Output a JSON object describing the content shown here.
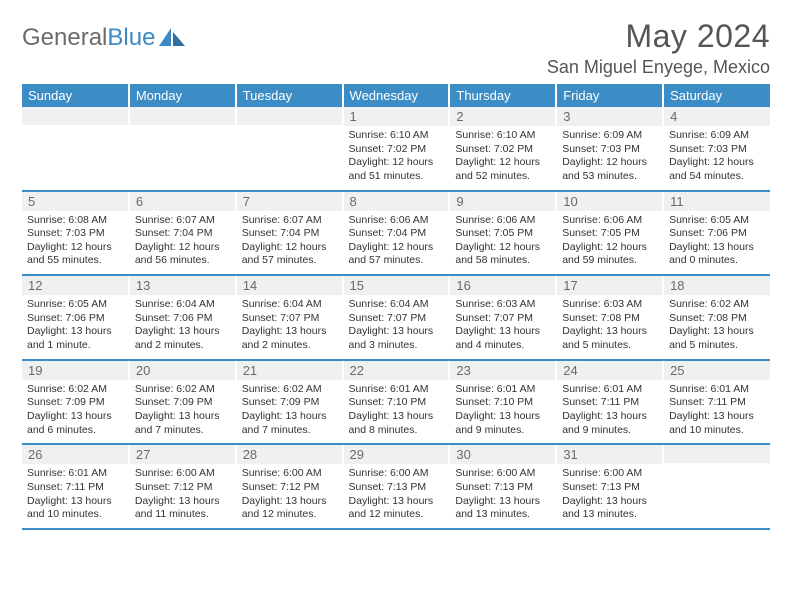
{
  "brand": {
    "word1": "General",
    "word2": "Blue"
  },
  "title": "May 2024",
  "location": "San Miguel Enyege, Mexico",
  "colors": {
    "header_bg": "#3c8dc5",
    "header_text": "#ffffff",
    "daynum_bg": "#eef0f2",
    "daynum_text": "#6a6a6a",
    "row_divider": "#3c8dc5",
    "body_text": "#333333",
    "title_text": "#555555",
    "logo_gray": "#6b6b6b",
    "logo_blue": "#3b8ac4",
    "background": "#ffffff"
  },
  "typography": {
    "month_title_pt": 24,
    "location_pt": 13.5,
    "weekday_pt": 10,
    "daynum_pt": 10,
    "body_pt": 8,
    "font_family": "Arial"
  },
  "weekdays": [
    "Sunday",
    "Monday",
    "Tuesday",
    "Wednesday",
    "Thursday",
    "Friday",
    "Saturday"
  ],
  "weeks": [
    [
      {
        "num": "",
        "lines": []
      },
      {
        "num": "",
        "lines": []
      },
      {
        "num": "",
        "lines": []
      },
      {
        "num": "1",
        "lines": [
          "Sunrise: 6:10 AM",
          "Sunset: 7:02 PM",
          "Daylight: 12 hours and 51 minutes."
        ]
      },
      {
        "num": "2",
        "lines": [
          "Sunrise: 6:10 AM",
          "Sunset: 7:02 PM",
          "Daylight: 12 hours and 52 minutes."
        ]
      },
      {
        "num": "3",
        "lines": [
          "Sunrise: 6:09 AM",
          "Sunset: 7:03 PM",
          "Daylight: 12 hours and 53 minutes."
        ]
      },
      {
        "num": "4",
        "lines": [
          "Sunrise: 6:09 AM",
          "Sunset: 7:03 PM",
          "Daylight: 12 hours and 54 minutes."
        ]
      }
    ],
    [
      {
        "num": "5",
        "lines": [
          "Sunrise: 6:08 AM",
          "Sunset: 7:03 PM",
          "Daylight: 12 hours and 55 minutes."
        ]
      },
      {
        "num": "6",
        "lines": [
          "Sunrise: 6:07 AM",
          "Sunset: 7:04 PM",
          "Daylight: 12 hours and 56 minutes."
        ]
      },
      {
        "num": "7",
        "lines": [
          "Sunrise: 6:07 AM",
          "Sunset: 7:04 PM",
          "Daylight: 12 hours and 57 minutes."
        ]
      },
      {
        "num": "8",
        "lines": [
          "Sunrise: 6:06 AM",
          "Sunset: 7:04 PM",
          "Daylight: 12 hours and 57 minutes."
        ]
      },
      {
        "num": "9",
        "lines": [
          "Sunrise: 6:06 AM",
          "Sunset: 7:05 PM",
          "Daylight: 12 hours and 58 minutes."
        ]
      },
      {
        "num": "10",
        "lines": [
          "Sunrise: 6:06 AM",
          "Sunset: 7:05 PM",
          "Daylight: 12 hours and 59 minutes."
        ]
      },
      {
        "num": "11",
        "lines": [
          "Sunrise: 6:05 AM",
          "Sunset: 7:06 PM",
          "Daylight: 13 hours and 0 minutes."
        ]
      }
    ],
    [
      {
        "num": "12",
        "lines": [
          "Sunrise: 6:05 AM",
          "Sunset: 7:06 PM",
          "Daylight: 13 hours and 1 minute."
        ]
      },
      {
        "num": "13",
        "lines": [
          "Sunrise: 6:04 AM",
          "Sunset: 7:06 PM",
          "Daylight: 13 hours and 2 minutes."
        ]
      },
      {
        "num": "14",
        "lines": [
          "Sunrise: 6:04 AM",
          "Sunset: 7:07 PM",
          "Daylight: 13 hours and 2 minutes."
        ]
      },
      {
        "num": "15",
        "lines": [
          "Sunrise: 6:04 AM",
          "Sunset: 7:07 PM",
          "Daylight: 13 hours and 3 minutes."
        ]
      },
      {
        "num": "16",
        "lines": [
          "Sunrise: 6:03 AM",
          "Sunset: 7:07 PM",
          "Daylight: 13 hours and 4 minutes."
        ]
      },
      {
        "num": "17",
        "lines": [
          "Sunrise: 6:03 AM",
          "Sunset: 7:08 PM",
          "Daylight: 13 hours and 5 minutes."
        ]
      },
      {
        "num": "18",
        "lines": [
          "Sunrise: 6:02 AM",
          "Sunset: 7:08 PM",
          "Daylight: 13 hours and 5 minutes."
        ]
      }
    ],
    [
      {
        "num": "19",
        "lines": [
          "Sunrise: 6:02 AM",
          "Sunset: 7:09 PM",
          "Daylight: 13 hours and 6 minutes."
        ]
      },
      {
        "num": "20",
        "lines": [
          "Sunrise: 6:02 AM",
          "Sunset: 7:09 PM",
          "Daylight: 13 hours and 7 minutes."
        ]
      },
      {
        "num": "21",
        "lines": [
          "Sunrise: 6:02 AM",
          "Sunset: 7:09 PM",
          "Daylight: 13 hours and 7 minutes."
        ]
      },
      {
        "num": "22",
        "lines": [
          "Sunrise: 6:01 AM",
          "Sunset: 7:10 PM",
          "Daylight: 13 hours and 8 minutes."
        ]
      },
      {
        "num": "23",
        "lines": [
          "Sunrise: 6:01 AM",
          "Sunset: 7:10 PM",
          "Daylight: 13 hours and 9 minutes."
        ]
      },
      {
        "num": "24",
        "lines": [
          "Sunrise: 6:01 AM",
          "Sunset: 7:11 PM",
          "Daylight: 13 hours and 9 minutes."
        ]
      },
      {
        "num": "25",
        "lines": [
          "Sunrise: 6:01 AM",
          "Sunset: 7:11 PM",
          "Daylight: 13 hours and 10 minutes."
        ]
      }
    ],
    [
      {
        "num": "26",
        "lines": [
          "Sunrise: 6:01 AM",
          "Sunset: 7:11 PM",
          "Daylight: 13 hours and 10 minutes."
        ]
      },
      {
        "num": "27",
        "lines": [
          "Sunrise: 6:00 AM",
          "Sunset: 7:12 PM",
          "Daylight: 13 hours and 11 minutes."
        ]
      },
      {
        "num": "28",
        "lines": [
          "Sunrise: 6:00 AM",
          "Sunset: 7:12 PM",
          "Daylight: 13 hours and 12 minutes."
        ]
      },
      {
        "num": "29",
        "lines": [
          "Sunrise: 6:00 AM",
          "Sunset: 7:13 PM",
          "Daylight: 13 hours and 12 minutes."
        ]
      },
      {
        "num": "30",
        "lines": [
          "Sunrise: 6:00 AM",
          "Sunset: 7:13 PM",
          "Daylight: 13 hours and 13 minutes."
        ]
      },
      {
        "num": "31",
        "lines": [
          "Sunrise: 6:00 AM",
          "Sunset: 7:13 PM",
          "Daylight: 13 hours and 13 minutes."
        ]
      },
      {
        "num": "",
        "lines": []
      }
    ]
  ]
}
